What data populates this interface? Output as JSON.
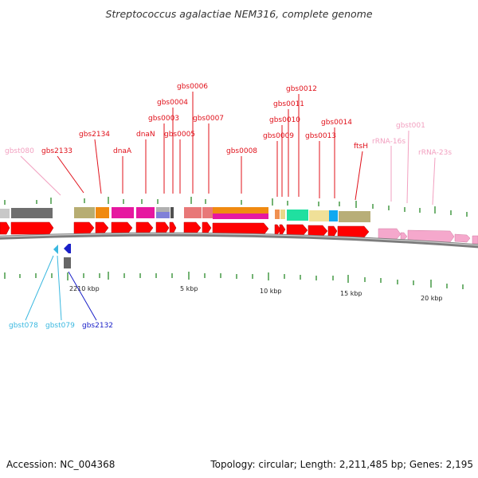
{
  "title": "Streptococcus agalactiae NEM316, complete genome",
  "footer": {
    "accession": "Accession: NC_004368",
    "topology": "Topology: circular; Length: 2,211,485 bp; Genes: 2,195"
  },
  "colors": {
    "gene_label": "#e0101a",
    "trna_label": "#f2a0c0",
    "cyan_label": "#3ab8e0",
    "navy_label": "#1a20c8",
    "backbone": "#8a8a8a",
    "cds_arrow": "#ff0000",
    "rrna_arrow": "#f5a8cc",
    "tick": "#2a8a2a"
  },
  "axis_labels": [
    "2210 kbp",
    "5 kbp",
    "10 kbp",
    "15 kbp",
    "20 kbp"
  ],
  "gene_labels_top": [
    "gbst080",
    "gbs2133",
    "gbs2134",
    "dnaA",
    "dnaN",
    "gbs0003",
    "gbs0004",
    "gbs0005",
    "gbs0006",
    "gbs0007",
    "gbs0008",
    "gbs0009",
    "gbs0010",
    "gbs0011",
    "gbs0012",
    "gbs0013",
    "gbs0014",
    "ftsH",
    "rRNA-16s",
    "gbst001",
    "rRNA-23s"
  ],
  "gene_labels_bottom": [
    "gbst078",
    "gbst079",
    "gbs2132"
  ]
}
